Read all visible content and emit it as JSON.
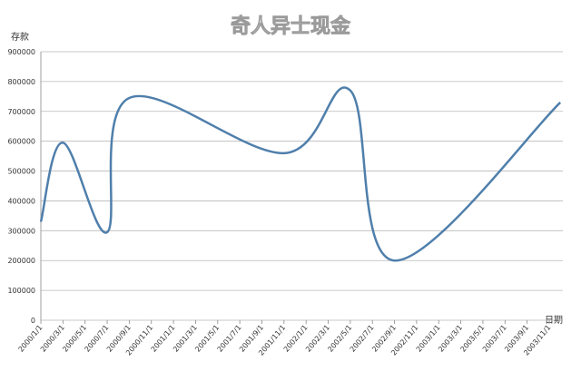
{
  "chart_data": {
    "type": "line",
    "title": "奇人异士现金",
    "y_label": "存款",
    "x_label": "日期",
    "categories": [
      "2000/1/1",
      "2000/3/1",
      "2000/5/1",
      "2000/7/1",
      "2000/9/1",
      "2000/11/1",
      "2001/1/1",
      "2001/3/1",
      "2001/5/1",
      "2001/7/1",
      "2001/9/1",
      "2001/11/1",
      "2002/1/1",
      "2002/3/1",
      "2002/5/1",
      "2002/7/1",
      "2002/9/1",
      "2002/11/1",
      "2003/1/1",
      "2003/3/1",
      "2003/5/1",
      "2003/7/1",
      "2003/9/1",
      "2003/11/1"
    ],
    "series": [
      {
        "name": "存款",
        "color": "#4f7fab",
        "x": [
          "2000/1/1",
          "2000/3/1",
          "2000/7/1",
          "2000/9/1",
          "2001/11/1",
          "2002/5/1",
          "2002/9/1",
          "2003/12/1"
        ],
        "values": [
          330000,
          595000,
          295000,
          745000,
          560000,
          770000,
          200000,
          730000
        ]
      }
    ],
    "ylim": [
      0,
      900000
    ],
    "yticks": [
      0,
      100000,
      200000,
      300000,
      400000,
      500000,
      600000,
      700000,
      800000,
      900000
    ],
    "grid": true
  }
}
